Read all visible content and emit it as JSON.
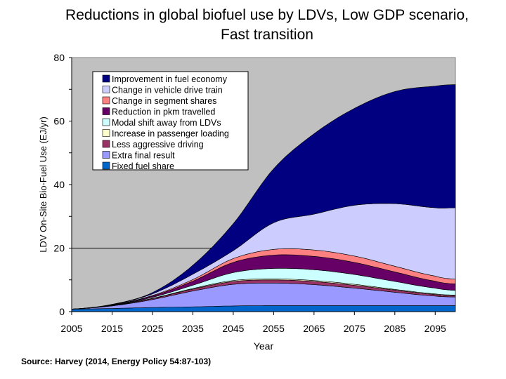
{
  "chart_data": {
    "type": "area",
    "stacked": true,
    "title": "Reductions in global biofuel use by LDVs, Low GDP scenario, Fast transition",
    "title_lines": [
      "Reductions in global biofuel use by LDVs, Low GDP scenario,",
      "Fast transition"
    ],
    "xlabel": "Year",
    "ylabel": "LDV On-Site Bio-Fuel Use (EJ/yr)",
    "xlim": [
      2005,
      2100
    ],
    "ylim": [
      0,
      80
    ],
    "x_ticks": [
      "2005",
      "2015",
      "2025",
      "2035",
      "2045",
      "2055",
      "2065",
      "2075",
      "2085",
      "2095"
    ],
    "y_ticks": [
      "0",
      "20",
      "40",
      "60",
      "80"
    ],
    "grid": "horizontal line at 20 only",
    "background": "#c0c0c0",
    "legend_position": "top-left",
    "x": [
      2005,
      2015,
      2025,
      2035,
      2045,
      2055,
      2065,
      2075,
      2085,
      2095,
      2100
    ],
    "series": [
      {
        "name": "Fixed fuel share",
        "color": "#0066cc",
        "values": [
          0.8,
          1.0,
          1.3,
          1.5,
          1.8,
          1.9,
          1.9,
          1.9,
          1.9,
          1.9,
          1.9
        ]
      },
      {
        "name": "Extra final result",
        "color": "#9999ff",
        "values": [
          0,
          0.8,
          2.5,
          5.0,
          6.8,
          7.1,
          6.6,
          5.5,
          4.2,
          3.0,
          2.7
        ]
      },
      {
        "name": "Less aggressive driving",
        "color": "#993366",
        "values": [
          0,
          0.1,
          0.3,
          0.6,
          0.9,
          1.0,
          1.0,
          0.9,
          0.7,
          0.5,
          0.4
        ]
      },
      {
        "name": "Increase in passenger loading",
        "color": "#ffffcc",
        "values": [
          0,
          0,
          0.1,
          0.2,
          0.3,
          0.3,
          0.3,
          0.3,
          0.2,
          0.2,
          0.2
        ]
      },
      {
        "name": "Modal shift away from LDVs",
        "color": "#ccffff",
        "values": [
          0,
          0.1,
          0.3,
          1.0,
          2.5,
          3.3,
          3.4,
          3.1,
          2.5,
          1.8,
          1.5
        ]
      },
      {
        "name": "Reduction in pkm travelled",
        "color": "#660066",
        "values": [
          0,
          0.1,
          0.4,
          1.3,
          3.2,
          4.2,
          4.2,
          3.8,
          3.0,
          2.2,
          2.0
        ]
      },
      {
        "name": "Change in segment shares",
        "color": "#ff8080",
        "values": [
          0,
          0,
          0.2,
          0.5,
          1.2,
          1.8,
          2.0,
          2.0,
          1.8,
          1.6,
          1.5
        ]
      },
      {
        "name": "Change in vehicle drive train",
        "color": "#ccccff",
        "values": [
          0,
          0.1,
          0.5,
          1.7,
          2.5,
          8.4,
          11.3,
          16.0,
          19.7,
          21.5,
          22.5
        ]
      },
      {
        "name": "Improvement in fuel economy",
        "color": "#000080",
        "values": [
          0,
          0.1,
          0.4,
          2.8,
          8.5,
          17.0,
          25.3,
          30.5,
          35.3,
          38.3,
          38.8
        ]
      }
    ],
    "legend_order": [
      "Improvement in fuel economy",
      "Change in vehicle drive train",
      "Change in segment shares",
      "Reduction in pkm travelled",
      "Modal shift away from LDVs",
      "Increase in passenger loading",
      "Less aggressive driving",
      "Extra final result",
      "Fixed fuel share"
    ]
  },
  "source": "Source: Harvey (2014, Energy Policy 54:87-103)"
}
